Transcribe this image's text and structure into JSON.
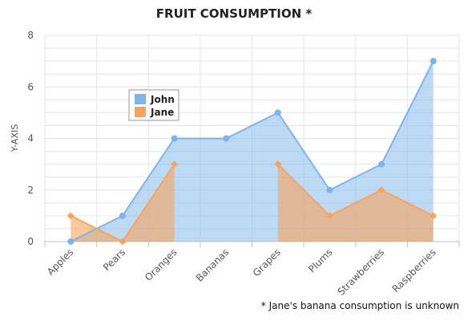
{
  "chart_data": {
    "type": "area",
    "title": "FRUIT CONSUMPTION *",
    "subtitle": "",
    "xlabel": "",
    "ylabel": "Y-AXIS",
    "categories": [
      "Apples",
      "Pears",
      "Oranges",
      "Bananas",
      "Grapes",
      "Plums",
      "Strawberries",
      "Raspberries"
    ],
    "series": [
      {
        "name": "John",
        "values": [
          0,
          1,
          4,
          4,
          5,
          2,
          3,
          7
        ],
        "color": "#7cb5ec"
      },
      {
        "name": "Jane",
        "values": [
          1,
          0,
          3,
          null,
          3,
          1,
          2,
          1
        ],
        "color": "#f7a35c"
      }
    ],
    "ylim": [
      0,
      8
    ],
    "yticks": [
      0,
      2,
      4,
      6,
      8
    ],
    "grid": true,
    "legend": "top-left",
    "footnote": "* Jane's banana consumption is unknown"
  }
}
